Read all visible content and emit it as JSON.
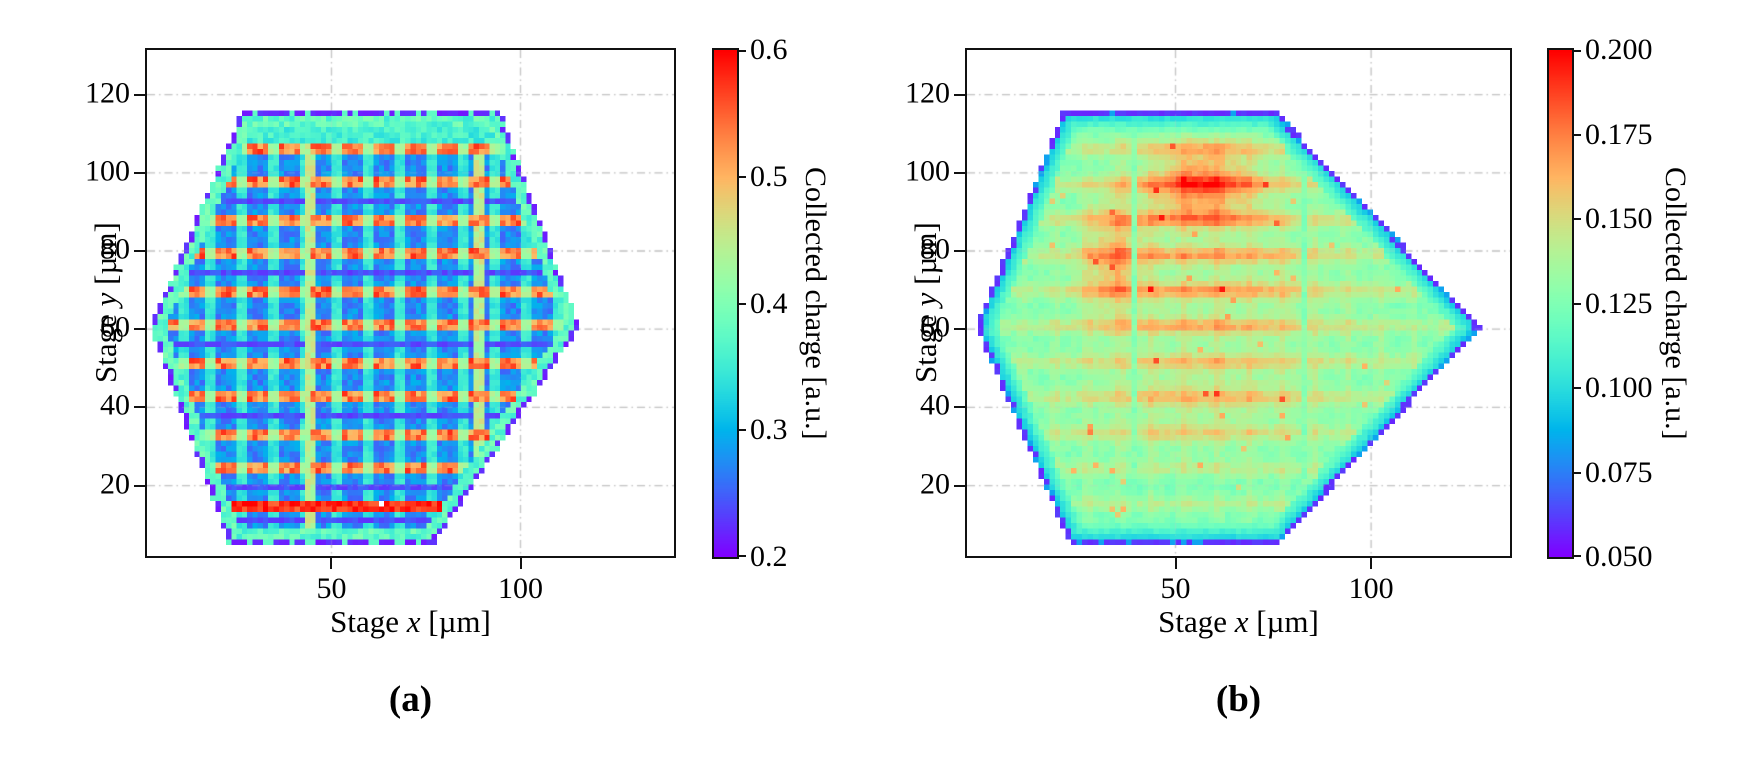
{
  "figure": {
    "background": "#ffffff",
    "text_color": "#000000",
    "grid_color": "#c9c9c9",
    "frame_color": "#111111"
  },
  "chart_data": [
    {
      "type": "heatmap",
      "panel": "a",
      "caption": "(a)",
      "xlabel": {
        "prefix": "Stage ",
        "var": "x",
        "suffix": " [µm]"
      },
      "ylabel": {
        "prefix": "Stage ",
        "var": "y",
        "suffix": " [µm]"
      },
      "xlim": [
        1.2,
        140.6
      ],
      "ylim": [
        2.0,
        131.4
      ],
      "x_ticks": [
        50,
        100
      ],
      "y_ticks": [
        20,
        40,
        60,
        80,
        100,
        120
      ],
      "grid": true,
      "colorbar": {
        "label": "Collected charge [a.u.]",
        "ticks": [
          "0.6",
          "0.5",
          "0.4",
          "0.3",
          "0.2"
        ],
        "vmin": 0.2,
        "vmax": 0.6,
        "colormap": "rainbow"
      },
      "region_hexagon": [
        [
          2,
          60.5
        ],
        [
          23,
          5
        ],
        [
          77,
          5
        ],
        [
          115.5,
          60.5
        ],
        [
          94.5,
          116
        ],
        [
          26.5,
          116
        ]
      ],
      "pattern": {
        "style": "striped",
        "cell_size": 1.4,
        "seed": 7,
        "row_period": 9.1,
        "row_phase": 13.8,
        "row_hot_width": 2.9,
        "col_period": 8.3,
        "col_phase": 2.0,
        "gap_width": 1.4,
        "values": {
          "border": 0.21,
          "edge_band": 0.375,
          "top_rim": 0.35,
          "hot_blob": 0.525,
          "hot_gap": 0.43,
          "cold": 0.275,
          "cold_sep": 0.345,
          "cold_dark": 0.245,
          "streak": 0.44,
          "bottom_hot": 0.575
        },
        "streak_columns": [
          44.5,
          89.1
        ],
        "bottom_hot_row": [
          12.5,
          16.5
        ],
        "top_rim_above": 108,
        "edge_band_width": 3.8
      }
    },
    {
      "type": "heatmap",
      "panel": "b",
      "caption": "(b)",
      "xlabel": {
        "prefix": "Stage ",
        "var": "x",
        "suffix": " [µm]"
      },
      "ylabel": {
        "prefix": "Stage ",
        "var": "y",
        "suffix": " [µm]"
      },
      "xlim": [
        -3.3,
        135.5
      ],
      "ylim": [
        2.0,
        131.4
      ],
      "x_ticks": [
        50,
        100
      ],
      "y_ticks": [
        20,
        40,
        60,
        80,
        100,
        120
      ],
      "grid": true,
      "colorbar": {
        "label": "Collected charge [a.u.]",
        "ticks": [
          "0.200",
          "0.175",
          "0.150",
          "0.125",
          "0.100",
          "0.075",
          "0.050"
        ],
        "vmin": 0.05,
        "vmax": 0.2,
        "colormap": "rainbow"
      },
      "region_hexagon": [
        [
          -1,
          60.5
        ],
        [
          23,
          5
        ],
        [
          76.5,
          5
        ],
        [
          128,
          60.5
        ],
        [
          75.5,
          116
        ],
        [
          21.5,
          116
        ]
      ],
      "pattern": {
        "style": "diffuse",
        "cell_size": 1.4,
        "seed": 13,
        "row_period": 9.1,
        "row_phase": 13.8,
        "col_period": 8.3,
        "col_phase": 2.0,
        "values": {
          "border": 0.057,
          "edge_lo": 0.083,
          "edge_hi": 0.118,
          "base": 0.124,
          "row_amp": 0.013,
          "col_amp": 0.007,
          "noise": 0.01
        },
        "edge_width": 5.0,
        "hotspots": [
          {
            "x": 57,
            "y": 97,
            "sx": 14,
            "sy": 9.5,
            "amp": 0.042
          },
          {
            "x": 34,
            "y": 78,
            "sx": 8,
            "sy": 16,
            "amp": 0.027
          },
          {
            "x": 62,
            "y": 68,
            "sx": 34,
            "sy": 30,
            "amp": 0.013
          },
          {
            "x": 55,
            "y": 43,
            "sx": 30,
            "sy": 6,
            "amp": 0.011
          },
          {
            "x": 50,
            "y": 33,
            "sx": 25,
            "sy": 5,
            "amp": 0.009
          }
        ],
        "row_boost": {
          "x": 57,
          "sx": 30,
          "y": 78,
          "sy": 38,
          "amp": 0.02
        },
        "streak_columns": [
          40,
          83
        ],
        "streak_value": 0.127
      }
    }
  ]
}
